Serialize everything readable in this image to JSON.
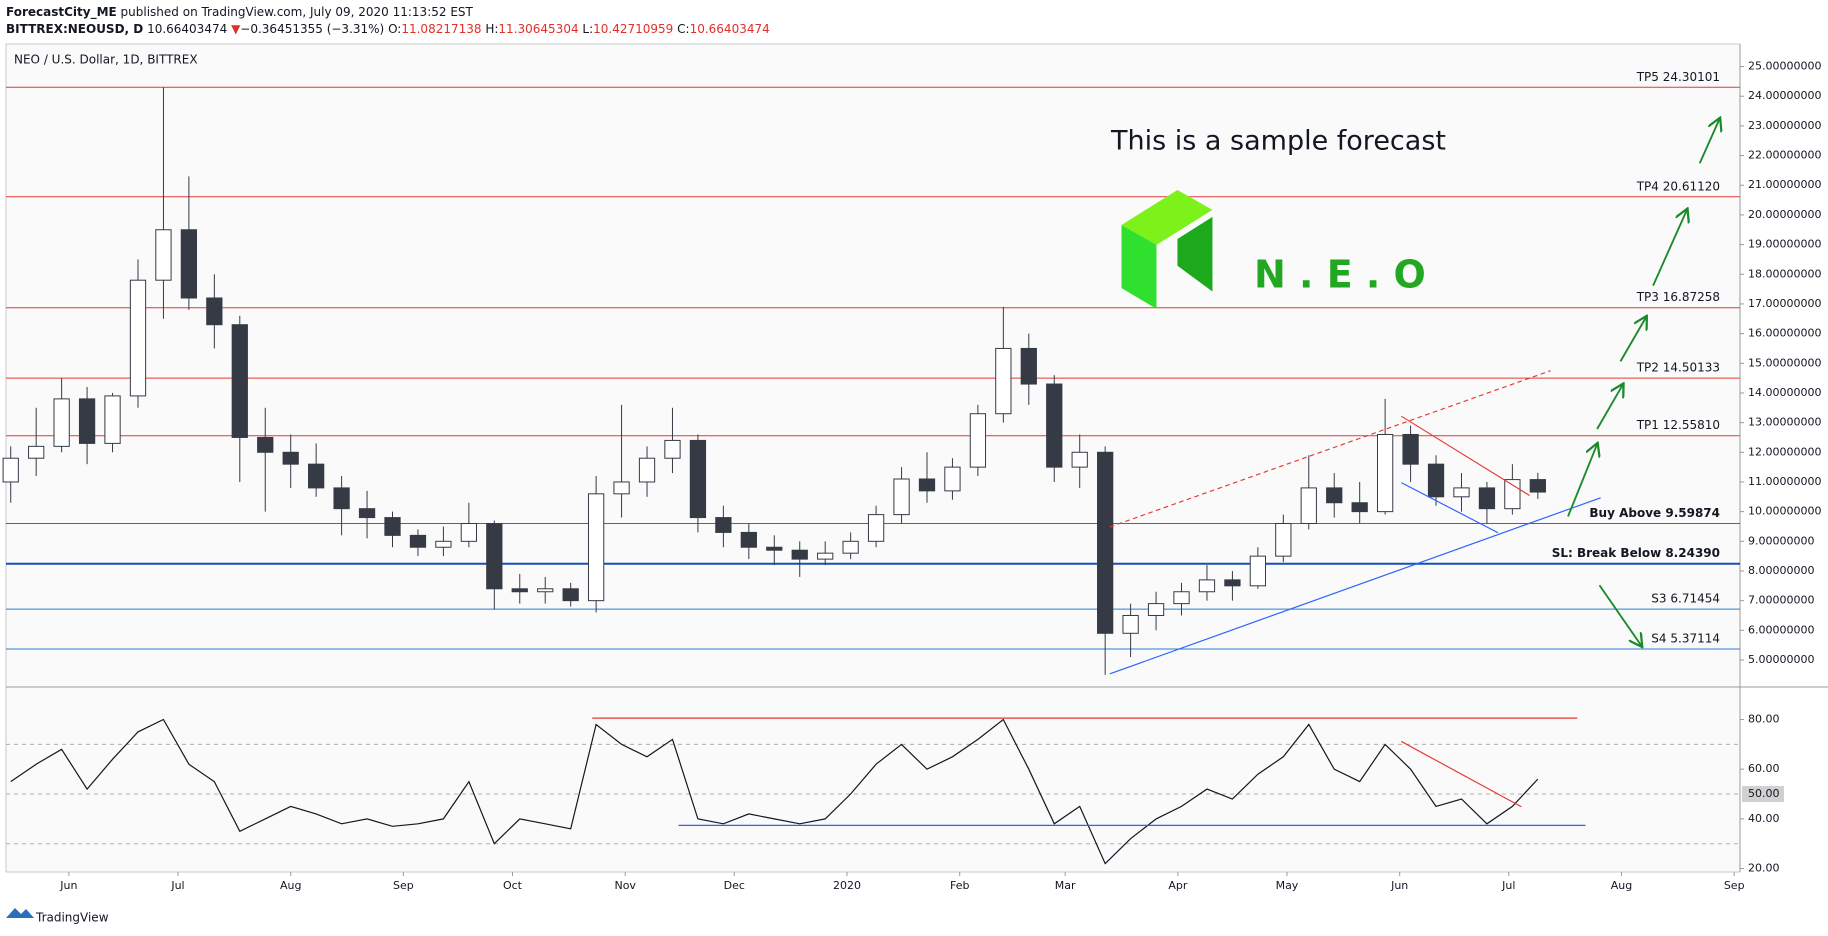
{
  "header": {
    "author": "ForecastCity_ME",
    "published": "published on TradingView.com, July 09, 2020 11:13:52 EST",
    "symbol": "BITTREX:NEOUSD, D",
    "last": "10.66403474",
    "arrow": "▼",
    "change": "−0.36451355 (−3.31%)",
    "o_label": "O:",
    "o": "11.08217138",
    "h_label": "H:",
    "h": "11.30645304",
    "l_label": "L:",
    "l": "10.42710959",
    "c_label": "C:",
    "c": "10.66403474"
  },
  "footer": "TradingView",
  "chart_data": [
    {
      "type": "candlestick",
      "title": "NEO / U.S. Dollar, 1D, BITTREX",
      "annotations": {
        "forecast": "This is a sample forecast",
        "logo_text": "N . E . O"
      },
      "xlim": [
        133.7,
        610.6
      ],
      "ylim": [
        4.09,
        25.76
      ],
      "yticks": [
        {
          "value": 5,
          "label": "5.00000000"
        },
        {
          "value": 6,
          "label": "6.00000000"
        },
        {
          "value": 7,
          "label": "7.00000000"
        },
        {
          "value": 8,
          "label": "8.00000000"
        },
        {
          "value": 9,
          "label": "9.00000000"
        },
        {
          "value": 10,
          "label": "10.00000000"
        },
        {
          "value": 11,
          "label": "11.00000000"
        },
        {
          "value": 12,
          "label": "12.00000000"
        },
        {
          "value": 13,
          "label": "13.00000000"
        },
        {
          "value": 14,
          "label": "14.00000000"
        },
        {
          "value": 15,
          "label": "15.00000000"
        },
        {
          "value": 16,
          "label": "16.00000000"
        },
        {
          "value": 17,
          "label": "17.00000000"
        },
        {
          "value": 18,
          "label": "18.00000000"
        },
        {
          "value": 19,
          "label": "19.00000000"
        },
        {
          "value": 20,
          "label": "20.00000000"
        },
        {
          "value": 21,
          "label": "21.00000000"
        },
        {
          "value": 22,
          "label": "22.00000000"
        },
        {
          "value": 23,
          "label": "23.00000000"
        },
        {
          "value": 24,
          "label": "24.00000000"
        },
        {
          "value": 25,
          "label": "25.00000000"
        }
      ],
      "up_color": "#ffffff",
      "down_color": "#363a45",
      "x": [
        135,
        142,
        149,
        156,
        163,
        170,
        177,
        184,
        191,
        198,
        205,
        212,
        219,
        226,
        233,
        240,
        247,
        254,
        261,
        268,
        275,
        282,
        289,
        296,
        303,
        310,
        317,
        324,
        331,
        338,
        345,
        352,
        359,
        366,
        373,
        380,
        387,
        394,
        401,
        408,
        415,
        422,
        429,
        436,
        443,
        450,
        457,
        464,
        471,
        478,
        485,
        492,
        499,
        506,
        513,
        520,
        527,
        534,
        541,
        548,
        555
      ],
      "open": [
        11.0,
        11.8,
        12.2,
        13.8,
        12.3,
        13.9,
        17.8,
        19.5,
        17.2,
        16.3,
        12.5,
        12.0,
        11.6,
        10.8,
        10.1,
        9.8,
        9.2,
        8.8,
        9.0,
        9.6,
        7.4,
        7.3,
        7.4,
        7.0,
        10.6,
        11.0,
        11.8,
        12.4,
        9.8,
        9.3,
        8.8,
        8.7,
        8.4,
        8.6,
        9.0,
        9.9,
        11.1,
        10.7,
        11.5,
        13.3,
        15.5,
        14.3,
        11.5,
        12.0,
        5.9,
        6.5,
        6.9,
        7.3,
        7.7,
        7.5,
        8.5,
        9.6,
        10.8,
        10.3,
        10.0,
        12.6,
        11.6,
        10.5,
        10.8,
        10.1,
        11.08
      ],
      "high": [
        12.2,
        13.5,
        14.5,
        14.2,
        14.0,
        18.5,
        24.3,
        21.3,
        18.0,
        16.6,
        13.5,
        12.6,
        12.3,
        11.2,
        10.7,
        10.0,
        9.4,
        9.5,
        10.3,
        9.7,
        7.9,
        7.8,
        7.6,
        11.2,
        13.6,
        12.2,
        13.5,
        12.6,
        10.2,
        9.6,
        9.2,
        9.0,
        9.0,
        9.3,
        10.2,
        11.5,
        12.0,
        11.8,
        13.6,
        16.9,
        16.0,
        14.6,
        12.6,
        12.2,
        6.9,
        7.3,
        7.6,
        8.2,
        8.0,
        8.8,
        9.9,
        11.9,
        11.3,
        11.0,
        13.8,
        12.9,
        11.9,
        11.3,
        11.0,
        11.6,
        11.31
      ],
      "low": [
        10.3,
        11.2,
        12.0,
        11.6,
        12.0,
        13.5,
        16.5,
        16.8,
        15.5,
        11.0,
        10.0,
        10.8,
        10.5,
        9.2,
        9.1,
        8.8,
        8.5,
        8.5,
        8.8,
        6.7,
        6.9,
        6.9,
        6.8,
        6.6,
        9.8,
        10.5,
        11.3,
        9.3,
        8.8,
        8.4,
        8.2,
        7.8,
        8.2,
        8.4,
        8.8,
        9.6,
        10.3,
        10.4,
        11.2,
        13.0,
        13.6,
        11.0,
        10.8,
        4.5,
        5.1,
        6.0,
        6.5,
        7.0,
        7.0,
        7.4,
        8.3,
        9.4,
        9.8,
        9.6,
        9.9,
        11.0,
        10.2,
        10.0,
        9.6,
        9.9,
        10.43
      ],
      "close": [
        11.8,
        12.2,
        13.8,
        12.3,
        13.9,
        17.8,
        19.5,
        17.2,
        16.3,
        12.5,
        12.0,
        11.6,
        10.8,
        10.1,
        9.8,
        9.2,
        8.8,
        9.0,
        9.6,
        7.4,
        7.3,
        7.4,
        7.0,
        10.6,
        11.0,
        11.8,
        12.4,
        9.8,
        9.3,
        8.8,
        8.7,
        8.4,
        8.6,
        9.0,
        9.9,
        11.1,
        10.7,
        11.5,
        13.3,
        15.5,
        14.3,
        11.5,
        12.0,
        5.9,
        6.5,
        6.9,
        7.3,
        7.7,
        7.5,
        8.5,
        9.6,
        10.8,
        10.3,
        10.0,
        12.6,
        11.6,
        10.5,
        10.8,
        10.1,
        11.08,
        10.66
      ],
      "levels": [
        {
          "label": "TP5 24.30101",
          "value": 24.30101,
          "color": "#e53935"
        },
        {
          "label": "TP4 20.61120",
          "value": 20.6112,
          "color": "#e53935"
        },
        {
          "label": "TP3 16.87258",
          "value": 16.87258,
          "color": "#e53935"
        },
        {
          "label": "TP2 14.50133",
          "value": 14.50133,
          "color": "#e53935"
        },
        {
          "label": "TP1 12.55810",
          "value": 12.5581,
          "color": "#e53935"
        },
        {
          "label": "Buy Above 9.59874",
          "value": 9.59874,
          "color": "#1e6fd0"
        },
        {
          "label": "SL: Break Below 8.24390",
          "value": 8.2439,
          "color": "#1550b8"
        },
        {
          "label": "S3 6.71454",
          "value": 6.71454,
          "color": "#2a7fd4"
        },
        {
          "label": "S4 5.37114",
          "value": 5.37114,
          "color": "#2a7fd4"
        }
      ]
    },
    {
      "type": "line",
      "color": "#131722",
      "xlim": [
        133.7,
        610.6
      ],
      "ylim": [
        18.6,
        93.1
      ],
      "xticks": [
        {
          "value": 151,
          "label": "Jun"
        },
        {
          "value": 181,
          "label": "Jul"
        },
        {
          "value": 212,
          "label": "Aug"
        },
        {
          "value": 243,
          "label": "Sep"
        },
        {
          "value": 273,
          "label": "Oct"
        },
        {
          "value": 304,
          "label": "Nov"
        },
        {
          "value": 334,
          "label": "Dec"
        },
        {
          "value": 365,
          "label": "2020"
        },
        {
          "value": 396,
          "label": "Feb"
        },
        {
          "value": 425,
          "label": "Mar"
        },
        {
          "value": 456,
          "label": "Apr"
        },
        {
          "value": 486,
          "label": "May"
        },
        {
          "value": 517,
          "label": "Jun"
        },
        {
          "value": 547,
          "label": "Jul"
        },
        {
          "value": 578,
          "label": "Aug"
        },
        {
          "value": 609,
          "label": "Sep"
        }
      ],
      "yticks": [
        {
          "value": 20,
          "label": "20.00"
        },
        {
          "value": 40,
          "label": "40.00"
        },
        {
          "value": 60,
          "label": "60.00"
        },
        {
          "value": 80,
          "label": "80.00"
        }
      ],
      "bands": [
        70,
        50,
        30
      ],
      "marker": {
        "value": 50,
        "label": "50.00"
      },
      "x": [
        135,
        142,
        149,
        156,
        163,
        170,
        177,
        184,
        191,
        198,
        205,
        212,
        219,
        226,
        233,
        240,
        247,
        254,
        261,
        268,
        275,
        282,
        289,
        296,
        303,
        310,
        317,
        324,
        331,
        338,
        345,
        352,
        359,
        366,
        373,
        380,
        387,
        394,
        401,
        408,
        415,
        422,
        429,
        436,
        443,
        450,
        457,
        464,
        471,
        478,
        485,
        492,
        499,
        506,
        513,
        520,
        527,
        534,
        541,
        548,
        555
      ],
      "values": [
        55,
        62,
        68,
        52,
        64,
        75,
        80,
        62,
        55,
        35,
        40,
        45,
        42,
        38,
        40,
        37,
        38,
        40,
        55,
        30,
        40,
        38,
        36,
        78,
        70,
        65,
        72,
        40,
        38,
        42,
        40,
        38,
        40,
        50,
        62,
        70,
        60,
        65,
        72,
        80,
        60,
        38,
        45,
        22,
        32,
        40,
        45,
        52,
        48,
        58,
        65,
        78,
        60,
        55,
        70,
        60,
        45,
        48,
        38,
        45,
        56
      ]
    }
  ]
}
